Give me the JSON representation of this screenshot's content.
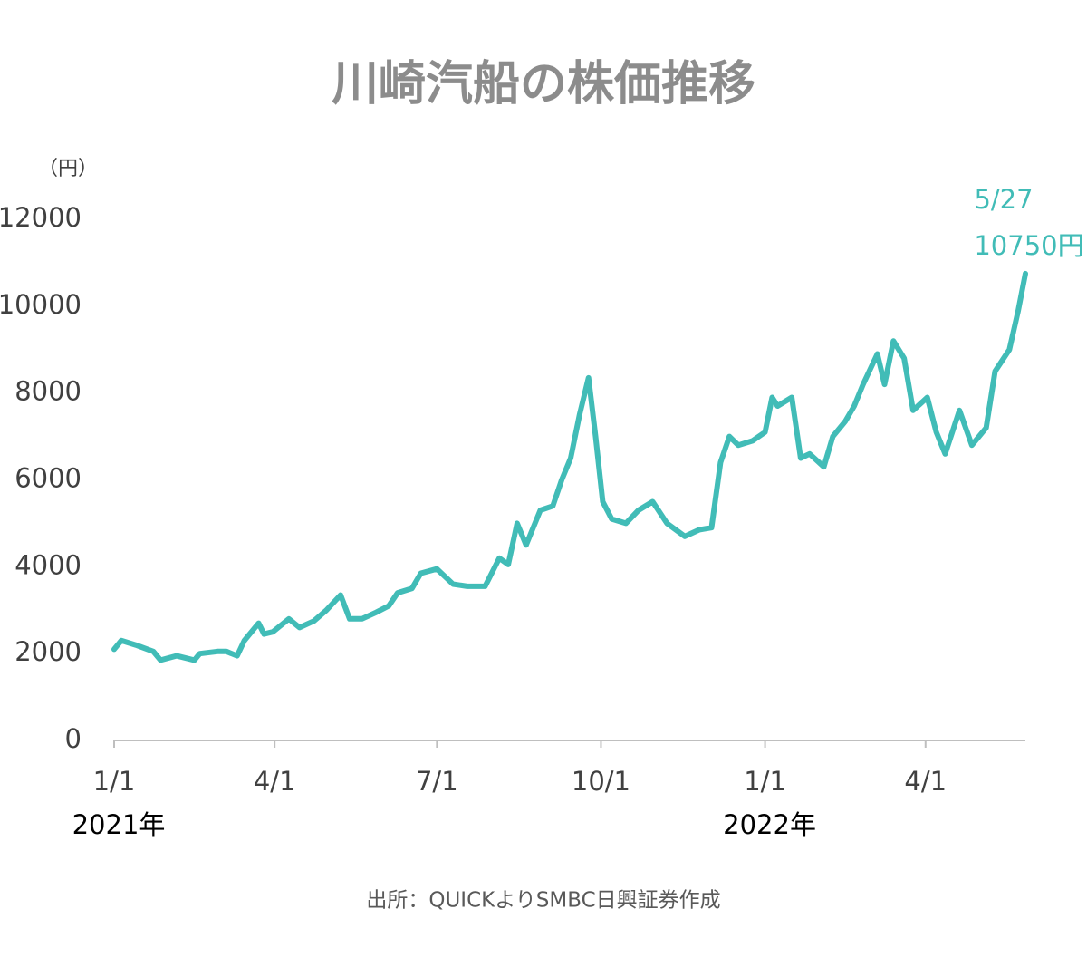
{
  "chart_data": {
    "type": "line",
    "title": "川崎汽船の株価推移",
    "y_unit": "（円）",
    "source": "出所：QUICKよりSMBC日興証券作成",
    "annotations": [
      "5/27",
      "10750円"
    ],
    "color": "#41bcb7",
    "xlim": [
      "2021-01-01",
      "2022-05-27"
    ],
    "xticks": [
      {
        "value": "2021-01-01",
        "label": "1/1"
      },
      {
        "value": "2021-04-01",
        "label": "4/1"
      },
      {
        "value": "2021-07-01",
        "label": "7/1"
      },
      {
        "value": "2021-10-01",
        "label": "10/1"
      },
      {
        "value": "2022-01-01",
        "label": "1/1"
      },
      {
        "value": "2022-04-01",
        "label": "4/1"
      }
    ],
    "year_labels": [
      {
        "value": "2021-01-01",
        "label": "2021年"
      },
      {
        "value": "2022-01-01",
        "label": "2022年"
      }
    ],
    "ylim": [
      0,
      12000
    ],
    "yticks": [
      0,
      2000,
      4000,
      6000,
      8000,
      10000,
      12000
    ],
    "x": [
      "2021-01-01",
      "2021-01-05",
      "2021-01-13",
      "2021-01-23",
      "2021-01-27",
      "2021-02-05",
      "2021-02-15",
      "2021-02-18",
      "2021-02-28",
      "2021-03-05",
      "2021-03-11",
      "2021-03-15",
      "2021-03-23",
      "2021-03-26",
      "2021-03-31",
      "2021-04-09",
      "2021-04-15",
      "2021-04-23",
      "2021-04-30",
      "2021-05-08",
      "2021-05-13",
      "2021-05-20",
      "2021-05-28",
      "2021-06-04",
      "2021-06-09",
      "2021-06-17",
      "2021-06-22",
      "2021-07-01",
      "2021-07-10",
      "2021-07-18",
      "2021-07-28",
      "2021-08-05",
      "2021-08-10",
      "2021-08-15",
      "2021-08-20",
      "2021-08-28",
      "2021-09-04",
      "2021-09-09",
      "2021-09-14",
      "2021-09-19",
      "2021-09-24",
      "2021-09-28",
      "2021-10-02",
      "2021-10-07",
      "2021-10-15",
      "2021-10-22",
      "2021-10-30",
      "2021-11-07",
      "2021-11-17",
      "2021-11-25",
      "2021-12-02",
      "2021-12-07",
      "2021-12-12",
      "2021-12-17",
      "2021-12-25",
      "2022-01-01",
      "2022-01-05",
      "2022-01-08",
      "2022-01-16",
      "2022-01-21",
      "2022-01-26",
      "2022-02-03",
      "2022-02-08",
      "2022-02-15",
      "2022-02-20",
      "2022-02-25",
      "2022-03-05",
      "2022-03-09",
      "2022-03-14",
      "2022-03-20",
      "2022-03-25",
      "2022-04-02",
      "2022-04-07",
      "2022-04-12",
      "2022-04-20",
      "2022-04-27",
      "2022-05-05",
      "2022-05-10",
      "2022-05-18",
      "2022-05-23",
      "2022-05-27"
    ],
    "values": [
      2100,
      2300,
      2200,
      2050,
      1850,
      1950,
      1850,
      2000,
      2050,
      2050,
      1950,
      2300,
      2700,
      2450,
      2500,
      2800,
      2600,
      2750,
      3000,
      3350,
      2800,
      2800,
      2950,
      3100,
      3400,
      3500,
      3850,
      3950,
      3600,
      3550,
      3550,
      4200,
      4050,
      5000,
      4500,
      5300,
      5400,
      6000,
      6500,
      7500,
      8350,
      7000,
      5500,
      5100,
      5000,
      5300,
      5500,
      5000,
      4700,
      4850,
      4900,
      6400,
      7000,
      6800,
      6900,
      7100,
      7900,
      7700,
      7900,
      6500,
      6600,
      6300,
      7000,
      7350,
      7700,
      8200,
      8900,
      8200,
      9200,
      8800,
      7600,
      7900,
      7100,
      6600,
      7600,
      6800,
      7200,
      8500,
      9000,
      9900,
      10750
    ]
  }
}
